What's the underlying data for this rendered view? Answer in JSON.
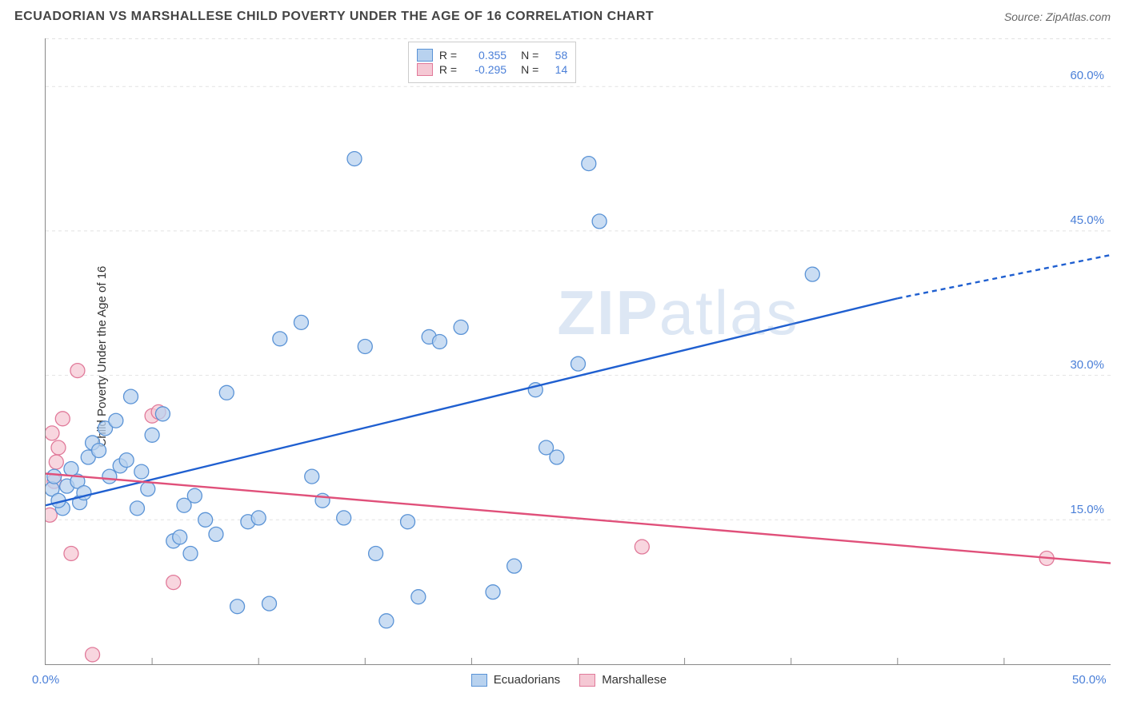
{
  "title": "ECUADORIAN VS MARSHALLESE CHILD POVERTY UNDER THE AGE OF 16 CORRELATION CHART",
  "source_label": "Source: ",
  "source_value": "ZipAtlas.com",
  "y_axis_label": "Child Poverty Under the Age of 16",
  "watermark_a": "ZIP",
  "watermark_b": "atlas",
  "chart": {
    "type": "scatter",
    "xlim": [
      0,
      50
    ],
    "ylim": [
      0,
      65
    ],
    "x_ticks_minor_step": 5,
    "y_gridlines": [
      15,
      30,
      45,
      60
    ],
    "y_tick_labels": [
      "15.0%",
      "30.0%",
      "45.0%",
      "60.0%"
    ],
    "x_origin_label": "0.0%",
    "x_end_label": "50.0%",
    "background_color": "#ffffff",
    "grid_color": "#e2e2e2",
    "grid_dash": "4,4",
    "axis_color": "#888888",
    "series": [
      {
        "name": "Ecuadorians",
        "color_fill": "#b8d2ef",
        "color_stroke": "#5a93d6",
        "marker_radius": 9,
        "marker_opacity": 0.75,
        "R_label": "R =",
        "R_value": "0.355",
        "N_label": "N =",
        "N_value": "58",
        "trend": {
          "x1": 0,
          "y1": 16.5,
          "x2": 40,
          "y2": 38,
          "x2_dash": 50,
          "y2_dash": 42.5,
          "color": "#1f5fd0",
          "width": 2.4
        },
        "points": [
          [
            0.3,
            18.2
          ],
          [
            0.4,
            19.5
          ],
          [
            0.8,
            16.2
          ],
          [
            1.0,
            18.5
          ],
          [
            1.2,
            20.3
          ],
          [
            1.5,
            19.0
          ],
          [
            1.6,
            16.8
          ],
          [
            2.0,
            21.5
          ],
          [
            2.2,
            23.0
          ],
          [
            2.5,
            22.2
          ],
          [
            2.8,
            24.5
          ],
          [
            3.0,
            19.5
          ],
          [
            3.3,
            25.3
          ],
          [
            3.5,
            20.6
          ],
          [
            3.8,
            21.2
          ],
          [
            4.0,
            27.8
          ],
          [
            4.3,
            16.2
          ],
          [
            4.5,
            20.0
          ],
          [
            5.0,
            23.8
          ],
          [
            5.5,
            26.0
          ],
          [
            6.0,
            12.8
          ],
          [
            6.3,
            13.2
          ],
          [
            6.5,
            16.5
          ],
          [
            7.0,
            17.5
          ],
          [
            7.5,
            15.0
          ],
          [
            8.0,
            13.5
          ],
          [
            8.5,
            28.2
          ],
          [
            9.0,
            6.0
          ],
          [
            9.5,
            14.8
          ],
          [
            10.0,
            15.2
          ],
          [
            10.5,
            6.3
          ],
          [
            11.0,
            33.8
          ],
          [
            12.0,
            35.5
          ],
          [
            12.5,
            19.5
          ],
          [
            13.0,
            17.0
          ],
          [
            14.0,
            15.2
          ],
          [
            14.5,
            52.5
          ],
          [
            15.0,
            33.0
          ],
          [
            15.5,
            11.5
          ],
          [
            16.0,
            4.5
          ],
          [
            17.0,
            14.8
          ],
          [
            17.5,
            7.0
          ],
          [
            18.0,
            34.0
          ],
          [
            18.5,
            33.5
          ],
          [
            19.5,
            35.0
          ],
          [
            21.0,
            7.5
          ],
          [
            22.0,
            10.2
          ],
          [
            23.0,
            28.5
          ],
          [
            23.5,
            22.5
          ],
          [
            24.0,
            21.5
          ],
          [
            25.0,
            31.2
          ],
          [
            25.5,
            52.0
          ],
          [
            26.0,
            46.0
          ],
          [
            36.0,
            40.5
          ],
          [
            0.6,
            17.0
          ],
          [
            1.8,
            17.8
          ],
          [
            4.8,
            18.2
          ],
          [
            6.8,
            11.5
          ]
        ]
      },
      {
        "name": "Marshallese",
        "color_fill": "#f5c8d4",
        "color_stroke": "#e17a9a",
        "marker_radius": 9,
        "marker_opacity": 0.75,
        "R_label": "R =",
        "R_value": "-0.295",
        "N_label": "N =",
        "N_value": "14",
        "trend": {
          "x1": 0,
          "y1": 19.8,
          "x2": 50,
          "y2": 10.5,
          "color": "#e0507a",
          "width": 2.4
        },
        "points": [
          [
            0.2,
            15.5
          ],
          [
            0.4,
            19.0
          ],
          [
            0.5,
            21.0
          ],
          [
            0.6,
            22.5
          ],
          [
            0.8,
            25.5
          ],
          [
            1.2,
            11.5
          ],
          [
            1.5,
            30.5
          ],
          [
            2.2,
            1.0
          ],
          [
            5.0,
            25.8
          ],
          [
            5.3,
            26.2
          ],
          [
            6.0,
            8.5
          ],
          [
            28.0,
            12.2
          ],
          [
            47.0,
            11.0
          ],
          [
            0.3,
            24.0
          ]
        ]
      }
    ],
    "legend_bottom": [
      {
        "swatch_fill": "#b8d2ef",
        "swatch_stroke": "#5a93d6",
        "label": "Ecuadorians"
      },
      {
        "swatch_fill": "#f5c8d4",
        "swatch_stroke": "#e17a9a",
        "label": "Marshallese"
      }
    ],
    "stats_box": {
      "border_color": "#cccccc",
      "value_color": "#4a7fd8"
    }
  }
}
